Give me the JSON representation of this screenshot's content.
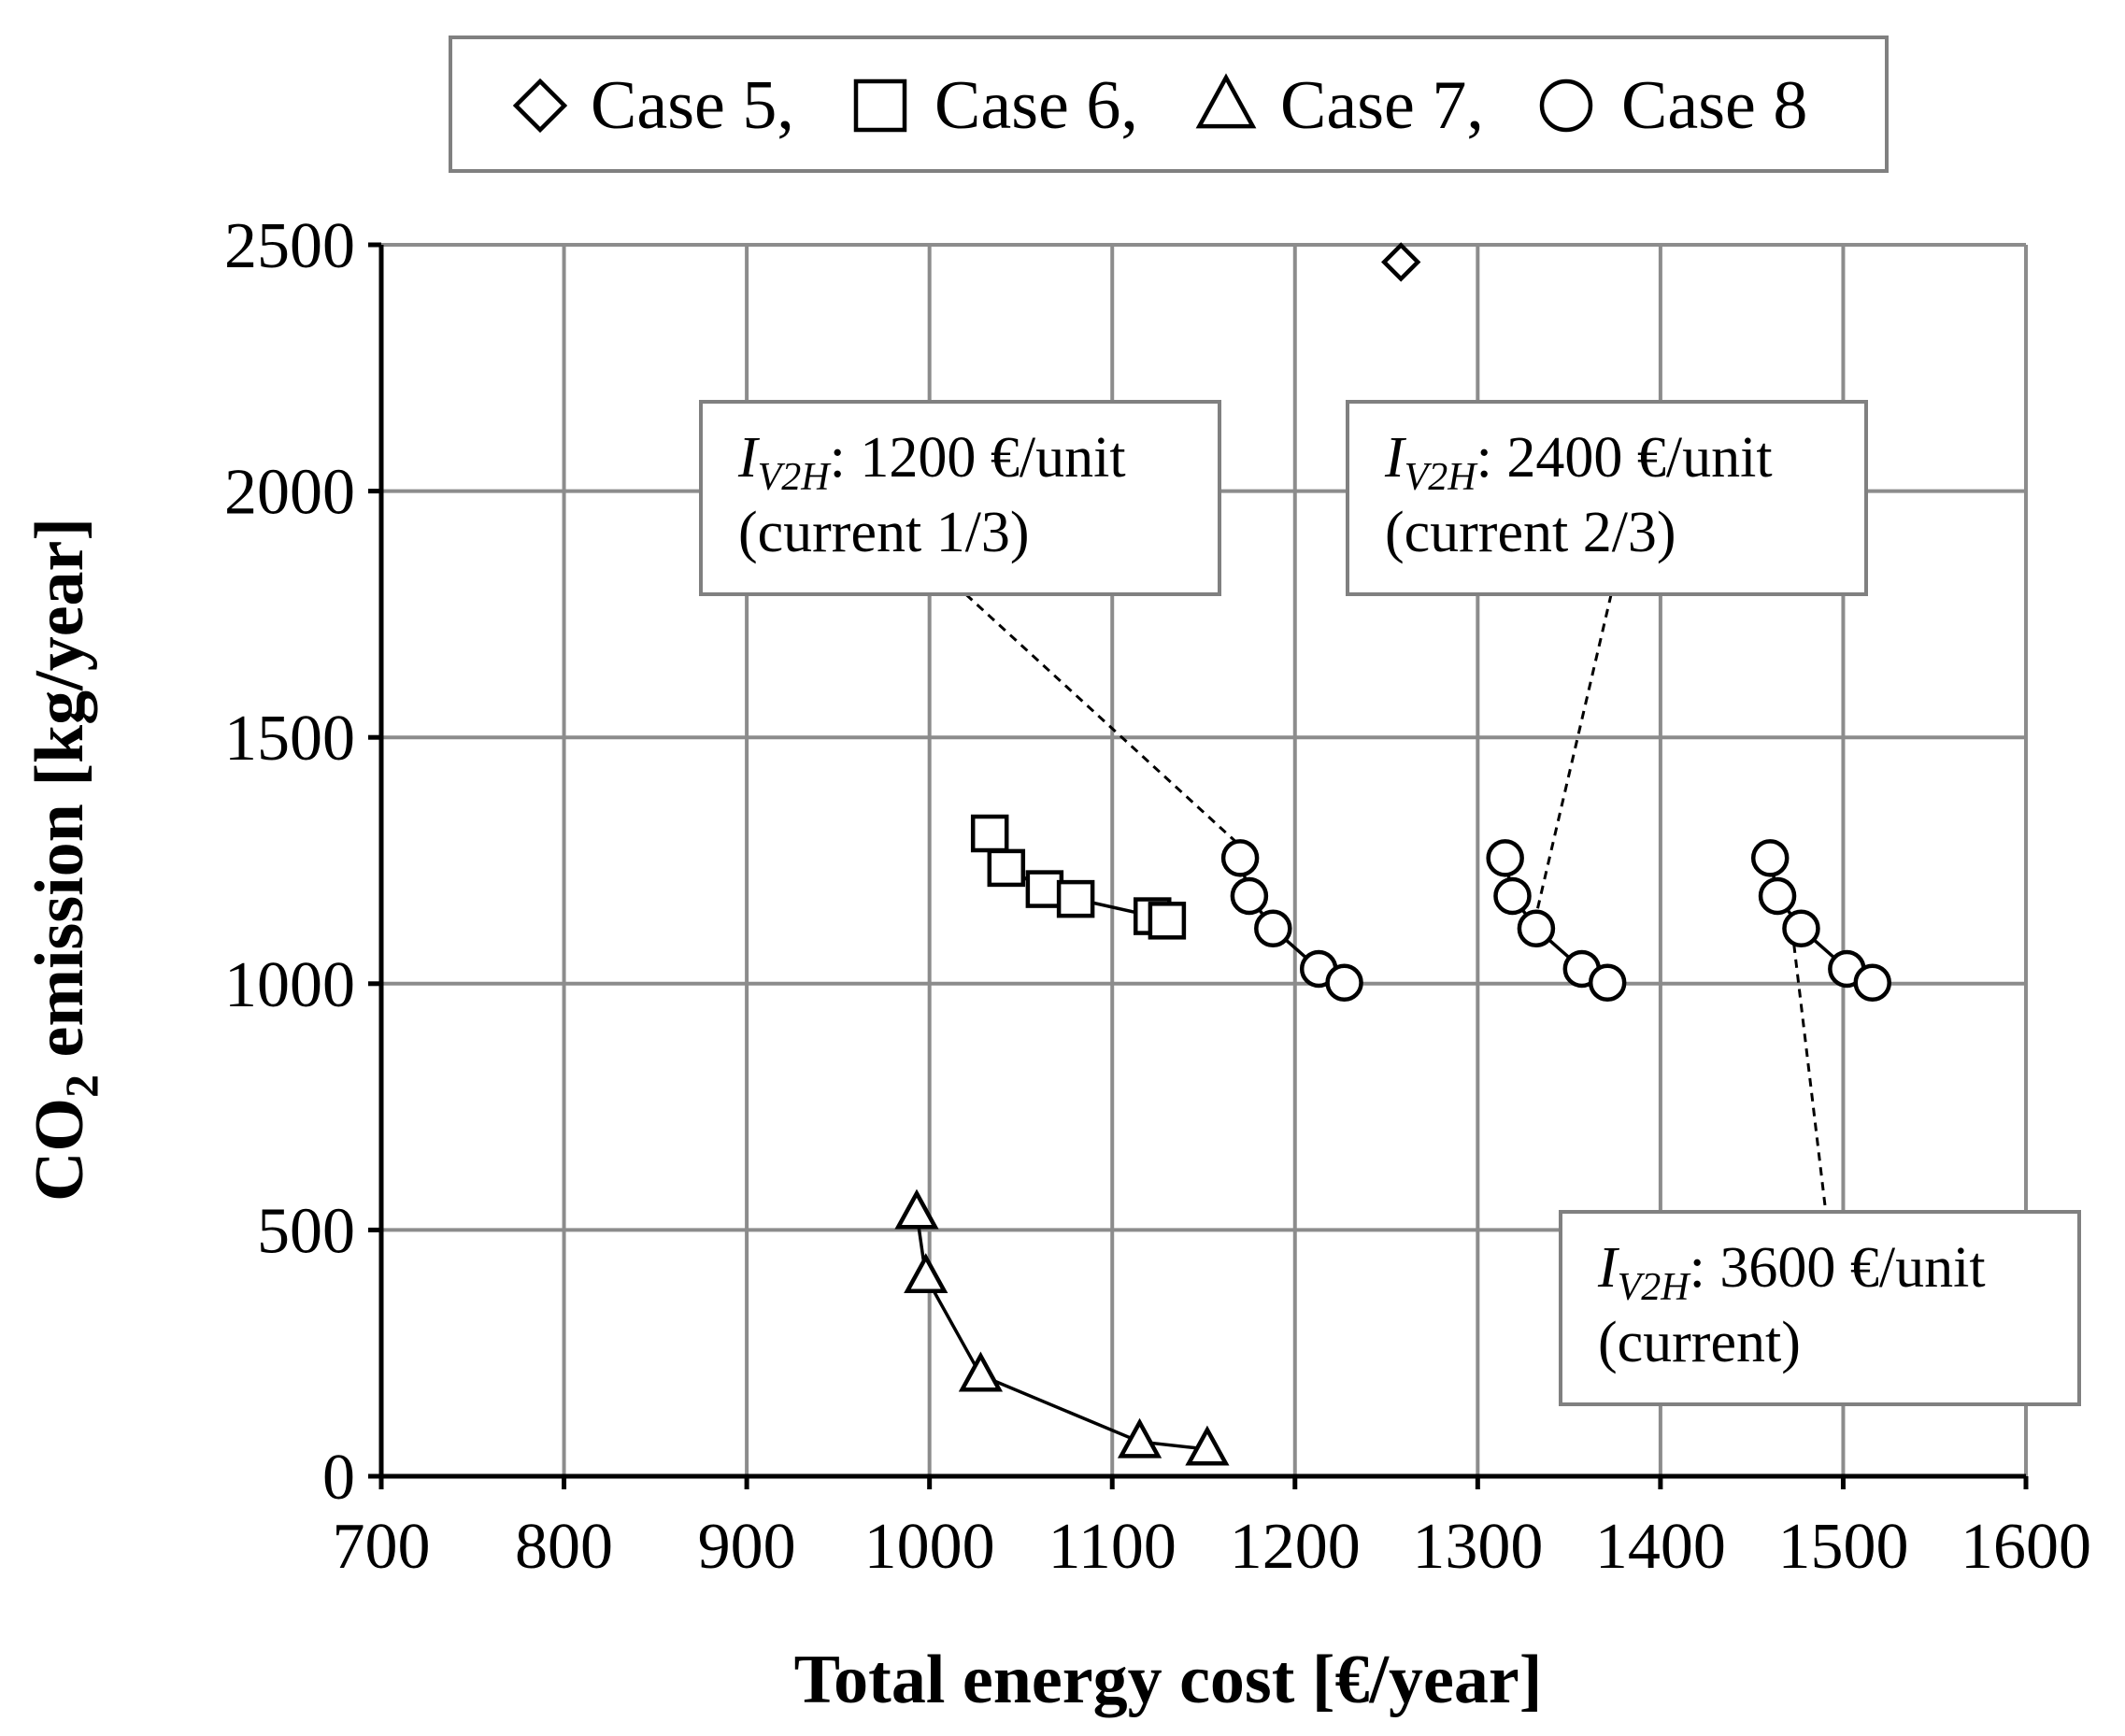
{
  "chart_data": {
    "type": "scatter",
    "xlabel": "Total energy cost [€/year]",
    "ylabel_main": "CO",
    "ylabel_sub": "2",
    "ylabel_rest": " emission [kg/year]",
    "xlim": [
      700,
      1600
    ],
    "ylim": [
      0,
      2500
    ],
    "xticks": [
      700,
      800,
      900,
      1000,
      1100,
      1200,
      1300,
      1400,
      1500,
      1600
    ],
    "yticks": [
      0,
      500,
      1000,
      1500,
      2000,
      2500
    ],
    "grid": true,
    "legend_position": "top-center",
    "legend": [
      {
        "label": "Case 5,",
        "marker": "diamond"
      },
      {
        "label": "Case 6,",
        "marker": "square"
      },
      {
        "label": "Case 7,",
        "marker": "triangle"
      },
      {
        "label": "Case 8",
        "marker": "circle"
      }
    ],
    "series": [
      {
        "name": "Case 5",
        "marker": "diamond",
        "connected": false,
        "points": [
          [
            1258,
            2465
          ]
        ]
      },
      {
        "name": "Case 6",
        "marker": "square",
        "connected": true,
        "points": [
          [
            1033,
            1305
          ],
          [
            1042,
            1235
          ],
          [
            1063,
            1192
          ],
          [
            1080,
            1172
          ],
          [
            1122,
            1137
          ],
          [
            1130,
            1128
          ]
        ]
      },
      {
        "name": "Case 7",
        "marker": "triangle",
        "connected": true,
        "points": [
          [
            993,
            535
          ],
          [
            998,
            405
          ],
          [
            1028,
            205
          ],
          [
            1115,
            70
          ],
          [
            1152,
            55
          ]
        ]
      },
      {
        "name": "Case 8",
        "marker": "circle",
        "connected": true,
        "points": [
          [
            1170,
            1255
          ],
          [
            1175,
            1178
          ],
          [
            1188,
            1112
          ],
          [
            1213,
            1030
          ],
          [
            1227,
            1002
          ]
        ]
      },
      {
        "name": "Case 8",
        "marker": "circle",
        "connected": true,
        "points": [
          [
            1315,
            1255
          ],
          [
            1319,
            1178
          ],
          [
            1332,
            1112
          ],
          [
            1357,
            1030
          ],
          [
            1371,
            1002
          ]
        ]
      },
      {
        "name": "Case 8",
        "marker": "circle",
        "connected": true,
        "points": [
          [
            1460,
            1255
          ],
          [
            1464,
            1178
          ],
          [
            1477,
            1112
          ],
          [
            1502,
            1030
          ],
          [
            1516,
            1002
          ]
        ]
      }
    ],
    "annotations": [
      {
        "sym": "I",
        "sub": "V2H",
        "line1": ": 1200 €/unit",
        "line2": "(current 1/3)",
        "target": [
          1170,
          1280
        ],
        "anchor": [
          1020,
          1790
        ]
      },
      {
        "sym": "I",
        "sub": "V2H",
        "line1": ": 2400 €/unit",
        "line2": "(current 2/3)",
        "target": [
          1332,
          1140
        ],
        "anchor": [
          1373,
          1790
        ]
      },
      {
        "sym": "I",
        "sub": "V2H",
        "line1": ": 3600 €/unit",
        "line2": "(current)",
        "target": [
          1472,
          1112
        ],
        "anchor": [
          1491,
          520
        ]
      }
    ]
  }
}
